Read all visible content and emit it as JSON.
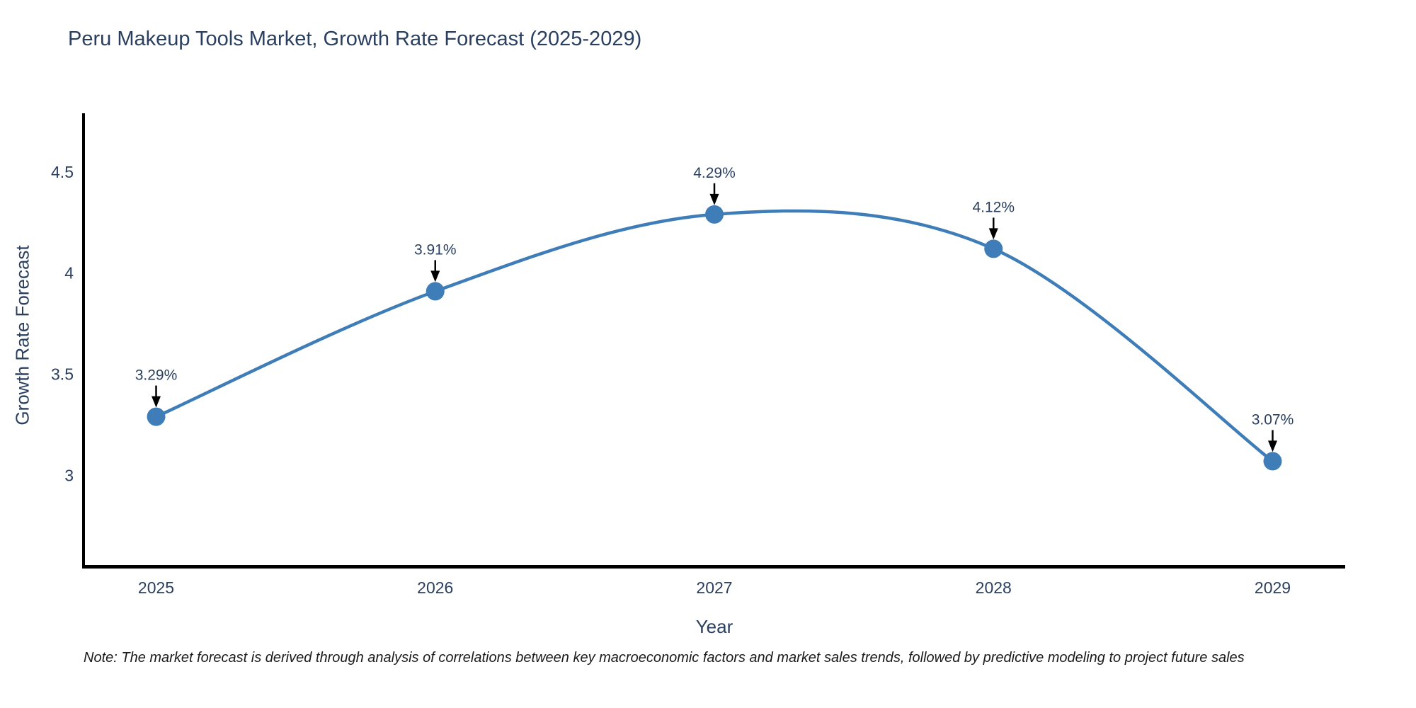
{
  "page": {
    "background": "#ffffff"
  },
  "chart_data": {
    "type": "line",
    "title": "Peru Makeup Tools Market, Growth Rate Forecast (2025-2029)",
    "xlabel": "Year",
    "ylabel": "Growth Rate Forecast",
    "x": [
      2025,
      2026,
      2027,
      2028,
      2029
    ],
    "series": [
      {
        "name": "Growth Rate Forecast",
        "values": [
          3.29,
          3.91,
          4.29,
          4.12,
          3.07
        ]
      }
    ],
    "point_labels": [
      "3.29%",
      "3.91%",
      "4.29%",
      "4.12%",
      "3.07%"
    ],
    "xtick_labels": [
      "2025",
      "2026",
      "2027",
      "2028",
      "2029"
    ],
    "yticks": [
      3,
      3.5,
      4,
      4.5
    ],
    "ytick_labels": [
      "3",
      "3.5",
      "4",
      "4.5"
    ],
    "x_range": [
      2024.74,
      2029.26
    ],
    "y_range": [
      2.55,
      4.79
    ],
    "grid": false,
    "legend": "none",
    "line_shape": "spline",
    "colors": {
      "series": "#3e7db8",
      "axis": "#000000",
      "text": "#2a3f5f",
      "annotation_arrow": "#000000",
      "note_text": "#1a1a1a"
    }
  },
  "note": "Note: The market forecast is derived through analysis of correlations between key macroeconomic factors and market sales trends, followed by predictive modeling to project future sales"
}
